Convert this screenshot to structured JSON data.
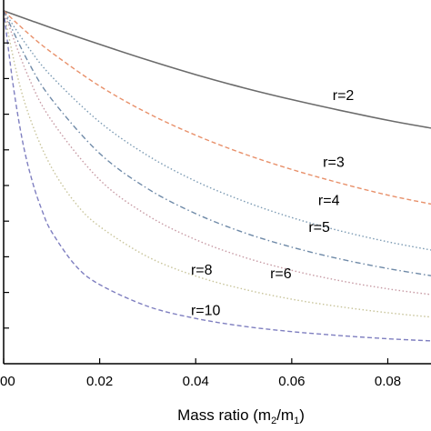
{
  "chart_data": {
    "type": "line",
    "title": "",
    "xlabel": "Mass ratio (m2/m1)",
    "xlabel_parts": {
      "prefix": "Mass ratio (m",
      "sub1": "2",
      "mid": "/m",
      "sub2": "1",
      "suffix": ")"
    },
    "ylabel": "",
    "xlim": [
      0,
      0.089
    ],
    "ylim": [
      0,
      1
    ],
    "x_ticks": [
      0,
      0.02,
      0.04,
      0.06,
      0.08
    ],
    "x_tick_labels": [
      "00",
      "0.02",
      "0.04",
      "0.06",
      "0.08"
    ],
    "y_tick_values": [
      0.1,
      0.2,
      0.3,
      0.4,
      0.5,
      0.6,
      0.7,
      0.8,
      0.9
    ],
    "grid": false,
    "legend": "none",
    "series": [
      {
        "name": "r=2",
        "color": "#6b6b6b",
        "dash": "solid",
        "x": [
          0,
          0.005,
          0.01,
          0.02,
          0.03,
          0.04,
          0.05,
          0.06,
          0.07,
          0.08,
          0.089
        ],
        "y": [
          0.99,
          0.966,
          0.942,
          0.896,
          0.852,
          0.811,
          0.774,
          0.741,
          0.711,
          0.683,
          0.661
        ]
      },
      {
        "name": "r=3",
        "color": "#e8906a",
        "dash": "dashed",
        "x": [
          0,
          0.005,
          0.01,
          0.02,
          0.03,
          0.04,
          0.05,
          0.06,
          0.07,
          0.08,
          0.089
        ],
        "y": [
          0.99,
          0.928,
          0.873,
          0.779,
          0.703,
          0.641,
          0.589,
          0.545,
          0.507,
          0.473,
          0.448
        ]
      },
      {
        "name": "r=4",
        "color": "#7b9ab3",
        "dash": "dotted",
        "x": [
          0,
          0.005,
          0.01,
          0.02,
          0.03,
          0.04,
          0.05,
          0.06,
          0.07,
          0.08,
          0.089
        ],
        "y": [
          0.99,
          0.89,
          0.806,
          0.678,
          0.584,
          0.512,
          0.456,
          0.41,
          0.373,
          0.342,
          0.319
        ]
      },
      {
        "name": "r=5",
        "color": "#6f8aa8",
        "dash": "dashdot",
        "x": [
          0,
          0.005,
          0.01,
          0.02,
          0.03,
          0.04,
          0.05,
          0.06,
          0.07,
          0.08,
          0.089
        ],
        "y": [
          0.99,
          0.85,
          0.742,
          0.59,
          0.491,
          0.421,
          0.368,
          0.327,
          0.294,
          0.267,
          0.247
        ]
      },
      {
        "name": "r=6",
        "color": "#c79aa4",
        "dash": "dotted",
        "x": [
          0,
          0.005,
          0.01,
          0.02,
          0.03,
          0.04,
          0.05,
          0.06,
          0.07,
          0.08,
          0.089
        ],
        "y": [
          0.99,
          0.81,
          0.682,
          0.516,
          0.416,
          0.348,
          0.299,
          0.262,
          0.233,
          0.21,
          0.194
        ]
      },
      {
        "name": "r=8",
        "color": "#c8c49a",
        "dash": "dotted",
        "x": [
          0,
          0.003,
          0.006,
          0.01,
          0.015,
          0.02,
          0.03,
          0.04,
          0.05,
          0.06,
          0.07,
          0.08,
          0.089
        ],
        "y": [
          0.99,
          0.8,
          0.67,
          0.55,
          0.45,
          0.385,
          0.3,
          0.246,
          0.209,
          0.181,
          0.16,
          0.143,
          0.131
        ]
      },
      {
        "name": "r=10",
        "color": "#7f7fc0",
        "dash": "dashed",
        "x": [
          0,
          0.002,
          0.004,
          0.006,
          0.008,
          0.01,
          0.015,
          0.02,
          0.03,
          0.04,
          0.05,
          0.06,
          0.07,
          0.08,
          0.089
        ],
        "y": [
          0.99,
          0.78,
          0.62,
          0.51,
          0.43,
          0.37,
          0.275,
          0.222,
          0.161,
          0.127,
          0.105,
          0.09,
          0.079,
          0.07,
          0.064
        ]
      }
    ],
    "annotations": [
      {
        "text": "r=2",
        "x": 0.0685,
        "y": 0.74
      },
      {
        "text": "r=3",
        "x": 0.0665,
        "y": 0.552
      },
      {
        "text": "r=4",
        "x": 0.0655,
        "y": 0.445
      },
      {
        "text": "r=5",
        "x": 0.0635,
        "y": 0.37
      },
      {
        "text": "r=6",
        "x": 0.0555,
        "y": 0.24
      },
      {
        "text": "r=8",
        "x": 0.039,
        "y": 0.25
      },
      {
        "text": "r=10",
        "x": 0.039,
        "y": 0.137
      }
    ]
  }
}
